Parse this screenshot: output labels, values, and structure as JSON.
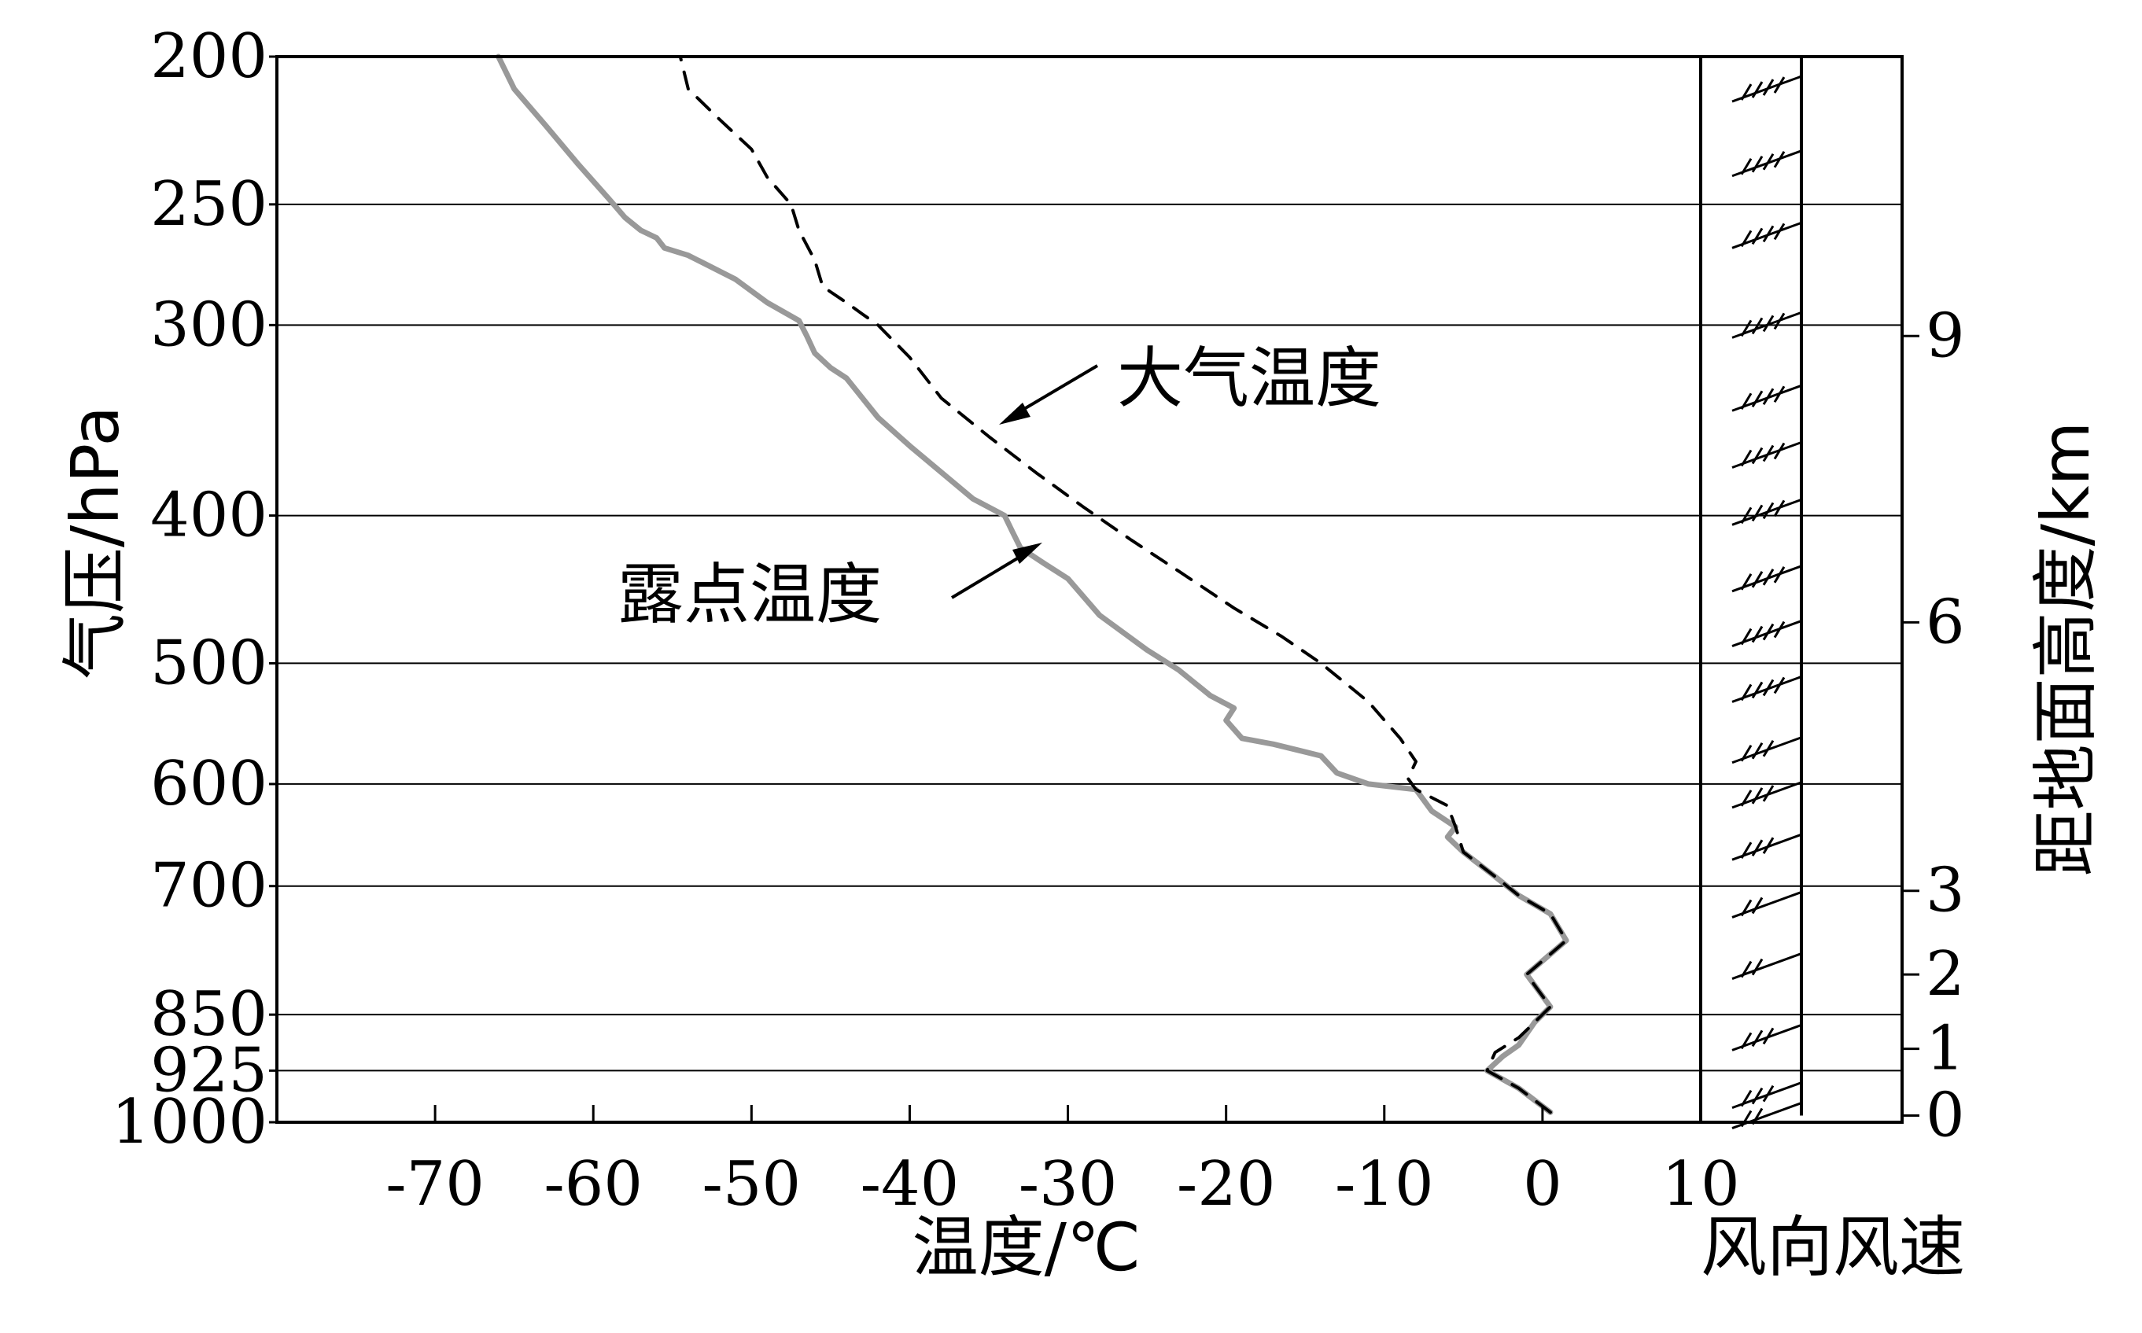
{
  "chart_data": {
    "type": "line",
    "xlabel": "温度/℃",
    "ylabel": "气压/hPa",
    "y2label": "距地面高度/km",
    "wind_label": "风向风速",
    "x_ticks": [
      -70,
      -60,
      -50,
      -40,
      -30,
      -20,
      -10,
      0,
      10
    ],
    "x_range": [
      -80,
      10
    ],
    "y_ticks": [
      200,
      250,
      300,
      400,
      500,
      600,
      700,
      850,
      925,
      1000
    ],
    "y_range": [
      1000,
      200
    ],
    "y_scale": "log",
    "y2_ticks": [
      9,
      6,
      3,
      2,
      1,
      0
    ],
    "gridlines": "horizontal at pressure ticks",
    "series": [
      {
        "name": "大气温度",
        "style": "dashed",
        "color": "#000000",
        "points": [
          [
            0.5,
            985
          ],
          [
            -1.5,
            950
          ],
          [
            -3.5,
            925
          ],
          [
            -3.0,
            900
          ],
          [
            -1.5,
            880
          ],
          [
            -0.5,
            860
          ],
          [
            0.5,
            840
          ],
          [
            -1.0,
            800
          ],
          [
            1.5,
            760
          ],
          [
            0.5,
            730
          ],
          [
            -1.5,
            710
          ],
          [
            -3,
            690
          ],
          [
            -5,
            665
          ],
          [
            -5.5,
            640
          ],
          [
            -6,
            620
          ],
          [
            -8,
            605
          ],
          [
            -8.5,
            595
          ],
          [
            -8,
            580
          ],
          [
            -9,
            560
          ],
          [
            -11,
            530
          ],
          [
            -14,
            500
          ],
          [
            -16.5,
            480
          ],
          [
            -19.5,
            460
          ],
          [
            -23,
            435
          ],
          [
            -26,
            415
          ],
          [
            -29,
            395
          ],
          [
            -32,
            375
          ],
          [
            -35,
            355
          ],
          [
            -38,
            335
          ],
          [
            -40,
            315
          ],
          [
            -42,
            300
          ],
          [
            -43,
            295
          ],
          [
            -44,
            290
          ],
          [
            -45.5,
            283
          ],
          [
            -46,
            272
          ],
          [
            -47,
            260
          ],
          [
            -47.5,
            250
          ],
          [
            -49,
            240
          ],
          [
            -50,
            230
          ],
          [
            -52,
            220
          ],
          [
            -54,
            210
          ],
          [
            -54.5,
            200
          ]
        ]
      },
      {
        "name": "露点温度",
        "style": "solid",
        "color": "#999999",
        "points": [
          [
            0.5,
            985
          ],
          [
            -1.5,
            950
          ],
          [
            -3.5,
            925
          ],
          [
            -2.5,
            905
          ],
          [
            -1.5,
            890
          ],
          [
            -0.5,
            860
          ],
          [
            0.5,
            840
          ],
          [
            -1.0,
            800
          ],
          [
            1.5,
            760
          ],
          [
            0.5,
            730
          ],
          [
            -1.5,
            710
          ],
          [
            -3,
            690
          ],
          [
            -5,
            665
          ],
          [
            -6,
            650
          ],
          [
            -5.5,
            640
          ],
          [
            -7,
            625
          ],
          [
            -8,
            605
          ],
          [
            -11,
            600
          ],
          [
            -13,
            590
          ],
          [
            -14,
            575
          ],
          [
            -17,
            565
          ],
          [
            -19,
            560
          ],
          [
            -20,
            545
          ],
          [
            -19.5,
            535
          ],
          [
            -21,
            525
          ],
          [
            -23,
            505
          ],
          [
            -25,
            490
          ],
          [
            -28,
            465
          ],
          [
            -30,
            440
          ],
          [
            -31.5,
            430
          ],
          [
            -33,
            420
          ],
          [
            -33.5,
            410
          ],
          [
            -34,
            400
          ],
          [
            -36,
            390
          ],
          [
            -40,
            360
          ],
          [
            -42,
            345
          ],
          [
            -44,
            325
          ],
          [
            -45,
            320
          ],
          [
            -46,
            313
          ],
          [
            -46.5,
            305
          ],
          [
            -47,
            298
          ],
          [
            -49,
            290
          ],
          [
            -51,
            280
          ],
          [
            -54,
            270
          ],
          [
            -55.5,
            267
          ],
          [
            -56,
            263
          ],
          [
            -57,
            260
          ],
          [
            -58,
            255
          ],
          [
            -59,
            248
          ],
          [
            -61,
            235
          ],
          [
            -63,
            222
          ],
          [
            -65,
            210
          ],
          [
            -66,
            200
          ]
        ]
      }
    ],
    "annotations": [
      {
        "text": "大气温度",
        "arrow_target": "series.0"
      },
      {
        "text": "露点温度",
        "arrow_target": "series.1"
      }
    ],
    "wind_barbs": [
      {
        "pressure": 210,
        "tails": 4
      },
      {
        "pressure": 235,
        "tails": 4
      },
      {
        "pressure": 262,
        "tails": 4
      },
      {
        "pressure": 300,
        "tails": 4
      },
      {
        "pressure": 335,
        "tails": 4
      },
      {
        "pressure": 365,
        "tails": 4
      },
      {
        "pressure": 398,
        "tails": 4
      },
      {
        "pressure": 440,
        "tails": 4
      },
      {
        "pressure": 478,
        "tails": 4
      },
      {
        "pressure": 520,
        "tails": 4
      },
      {
        "pressure": 570,
        "tails": 3
      },
      {
        "pressure": 610,
        "tails": 3
      },
      {
        "pressure": 660,
        "tails": 3
      },
      {
        "pressure": 720,
        "tails": 2
      },
      {
        "pressure": 790,
        "tails": 2
      },
      {
        "pressure": 880,
        "tails": 3
      },
      {
        "pressure": 960,
        "tails": 3
      },
      {
        "pressure": 990,
        "tails": 2
      }
    ]
  }
}
